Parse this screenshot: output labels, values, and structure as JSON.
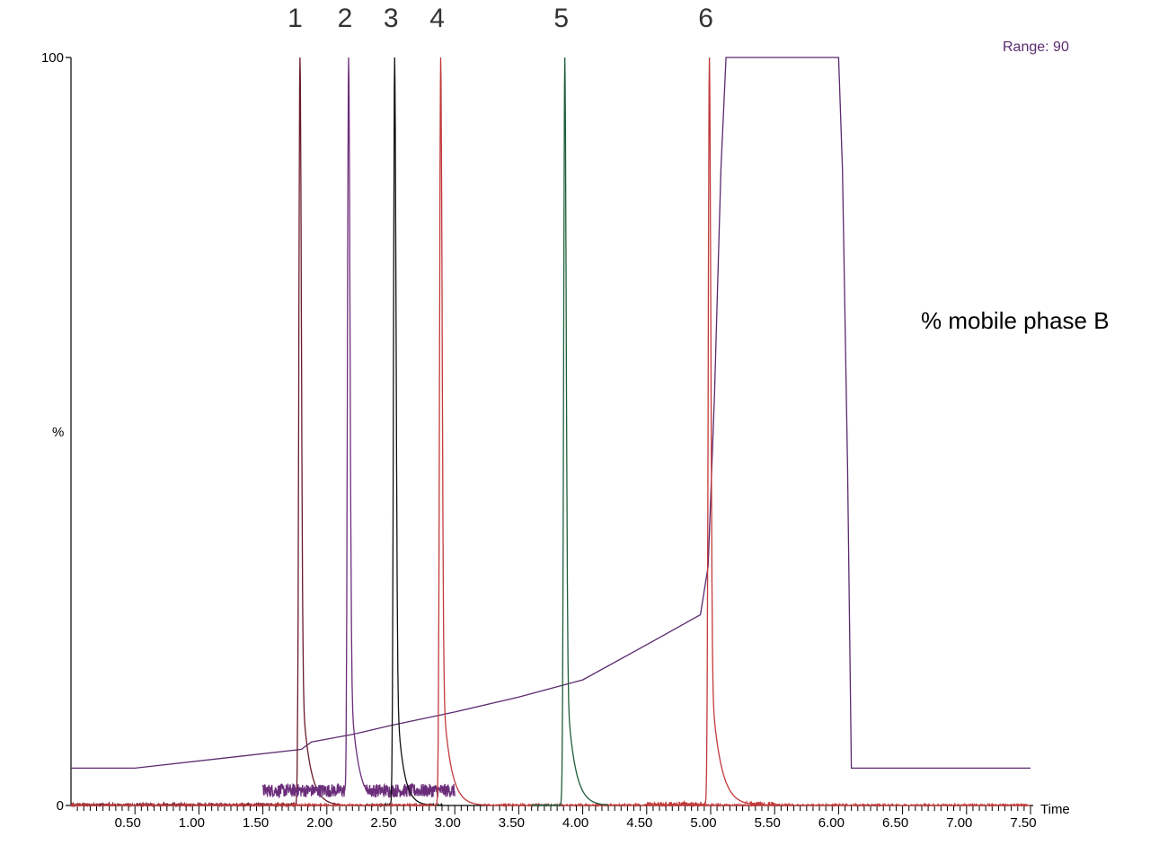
{
  "chart_data": {
    "type": "line",
    "title": "",
    "xlabel": "Time",
    "ylabel": "%",
    "range_label": "Range: 90",
    "annotation": "% mobile phase B",
    "xlim": [
      0,
      7.5
    ],
    "ylim": [
      0,
      100
    ],
    "y_ticks": [
      "0",
      "100"
    ],
    "x_ticks": [
      "0.50",
      "1.00",
      "1.50",
      "2.00",
      "2.50",
      "3.00",
      "3.50",
      "4.00",
      "4.50",
      "5.00",
      "5.50",
      "6.00",
      "6.50",
      "7.00",
      "7.50"
    ],
    "peak_labels": [
      {
        "label": "1",
        "time": 1.78
      },
      {
        "label": "2",
        "time": 2.17
      },
      {
        "label": "3",
        "time": 2.53
      },
      {
        "label": "4",
        "time": 2.89
      },
      {
        "label": "5",
        "time": 3.86
      },
      {
        "label": "6",
        "time": 4.99
      }
    ],
    "series": [
      {
        "name": "% mobile phase B",
        "color": "#5b2a6e",
        "points": [
          [
            0,
            5
          ],
          [
            0.5,
            5
          ],
          [
            1.8,
            7.5
          ],
          [
            1.88,
            8.5
          ],
          [
            2.2,
            9.5
          ],
          [
            2.5,
            10.7
          ],
          [
            3.0,
            12.5
          ],
          [
            3.5,
            14.5
          ],
          [
            4.0,
            16.8
          ],
          [
            4.5,
            21.5
          ],
          [
            4.92,
            25.5
          ],
          [
            4.98,
            32
          ],
          [
            5.03,
            55
          ],
          [
            5.08,
            85
          ],
          [
            5.12,
            100
          ],
          [
            6.0,
            100
          ],
          [
            6.03,
            85
          ],
          [
            6.07,
            45
          ],
          [
            6.1,
            5
          ],
          [
            7.5,
            5
          ]
        ]
      },
      {
        "name": "peak 1",
        "color": "#6a1a2a",
        "rt": 1.79,
        "height": 100,
        "base_start": 0,
        "base_end": 2.1,
        "tail": 0.06,
        "noise": 0.3
      },
      {
        "name": "peak 2",
        "color": "#6b2d7a",
        "rt": 2.17,
        "height": 100,
        "base_start": 1.5,
        "base_end": 3.0,
        "tail": 0.06,
        "noise": 0.9,
        "baseline": 2.0
      },
      {
        "name": "peak 3",
        "color": "#111111",
        "rt": 2.53,
        "height": 100,
        "base_start": 2.3,
        "base_end": 2.9,
        "tail": 0.05,
        "noise": 0.2
      },
      {
        "name": "peak 4",
        "color": "#c23a3a",
        "rt": 2.89,
        "height": 100,
        "base_start": 0,
        "base_end": 7.5,
        "tail": 0.06,
        "noise": 0.15
      },
      {
        "name": "peak 5",
        "color": "#1f5e3a",
        "rt": 3.86,
        "height": 100,
        "base_start": 3.6,
        "base_end": 4.2,
        "tail": 0.06,
        "noise": 0.1
      },
      {
        "name": "peak 6",
        "color": "#c23a3a",
        "rt": 4.99,
        "height": 100,
        "base_start": 4.5,
        "base_end": 5.5,
        "tail": 0.07,
        "noise": 0.5
      }
    ]
  }
}
